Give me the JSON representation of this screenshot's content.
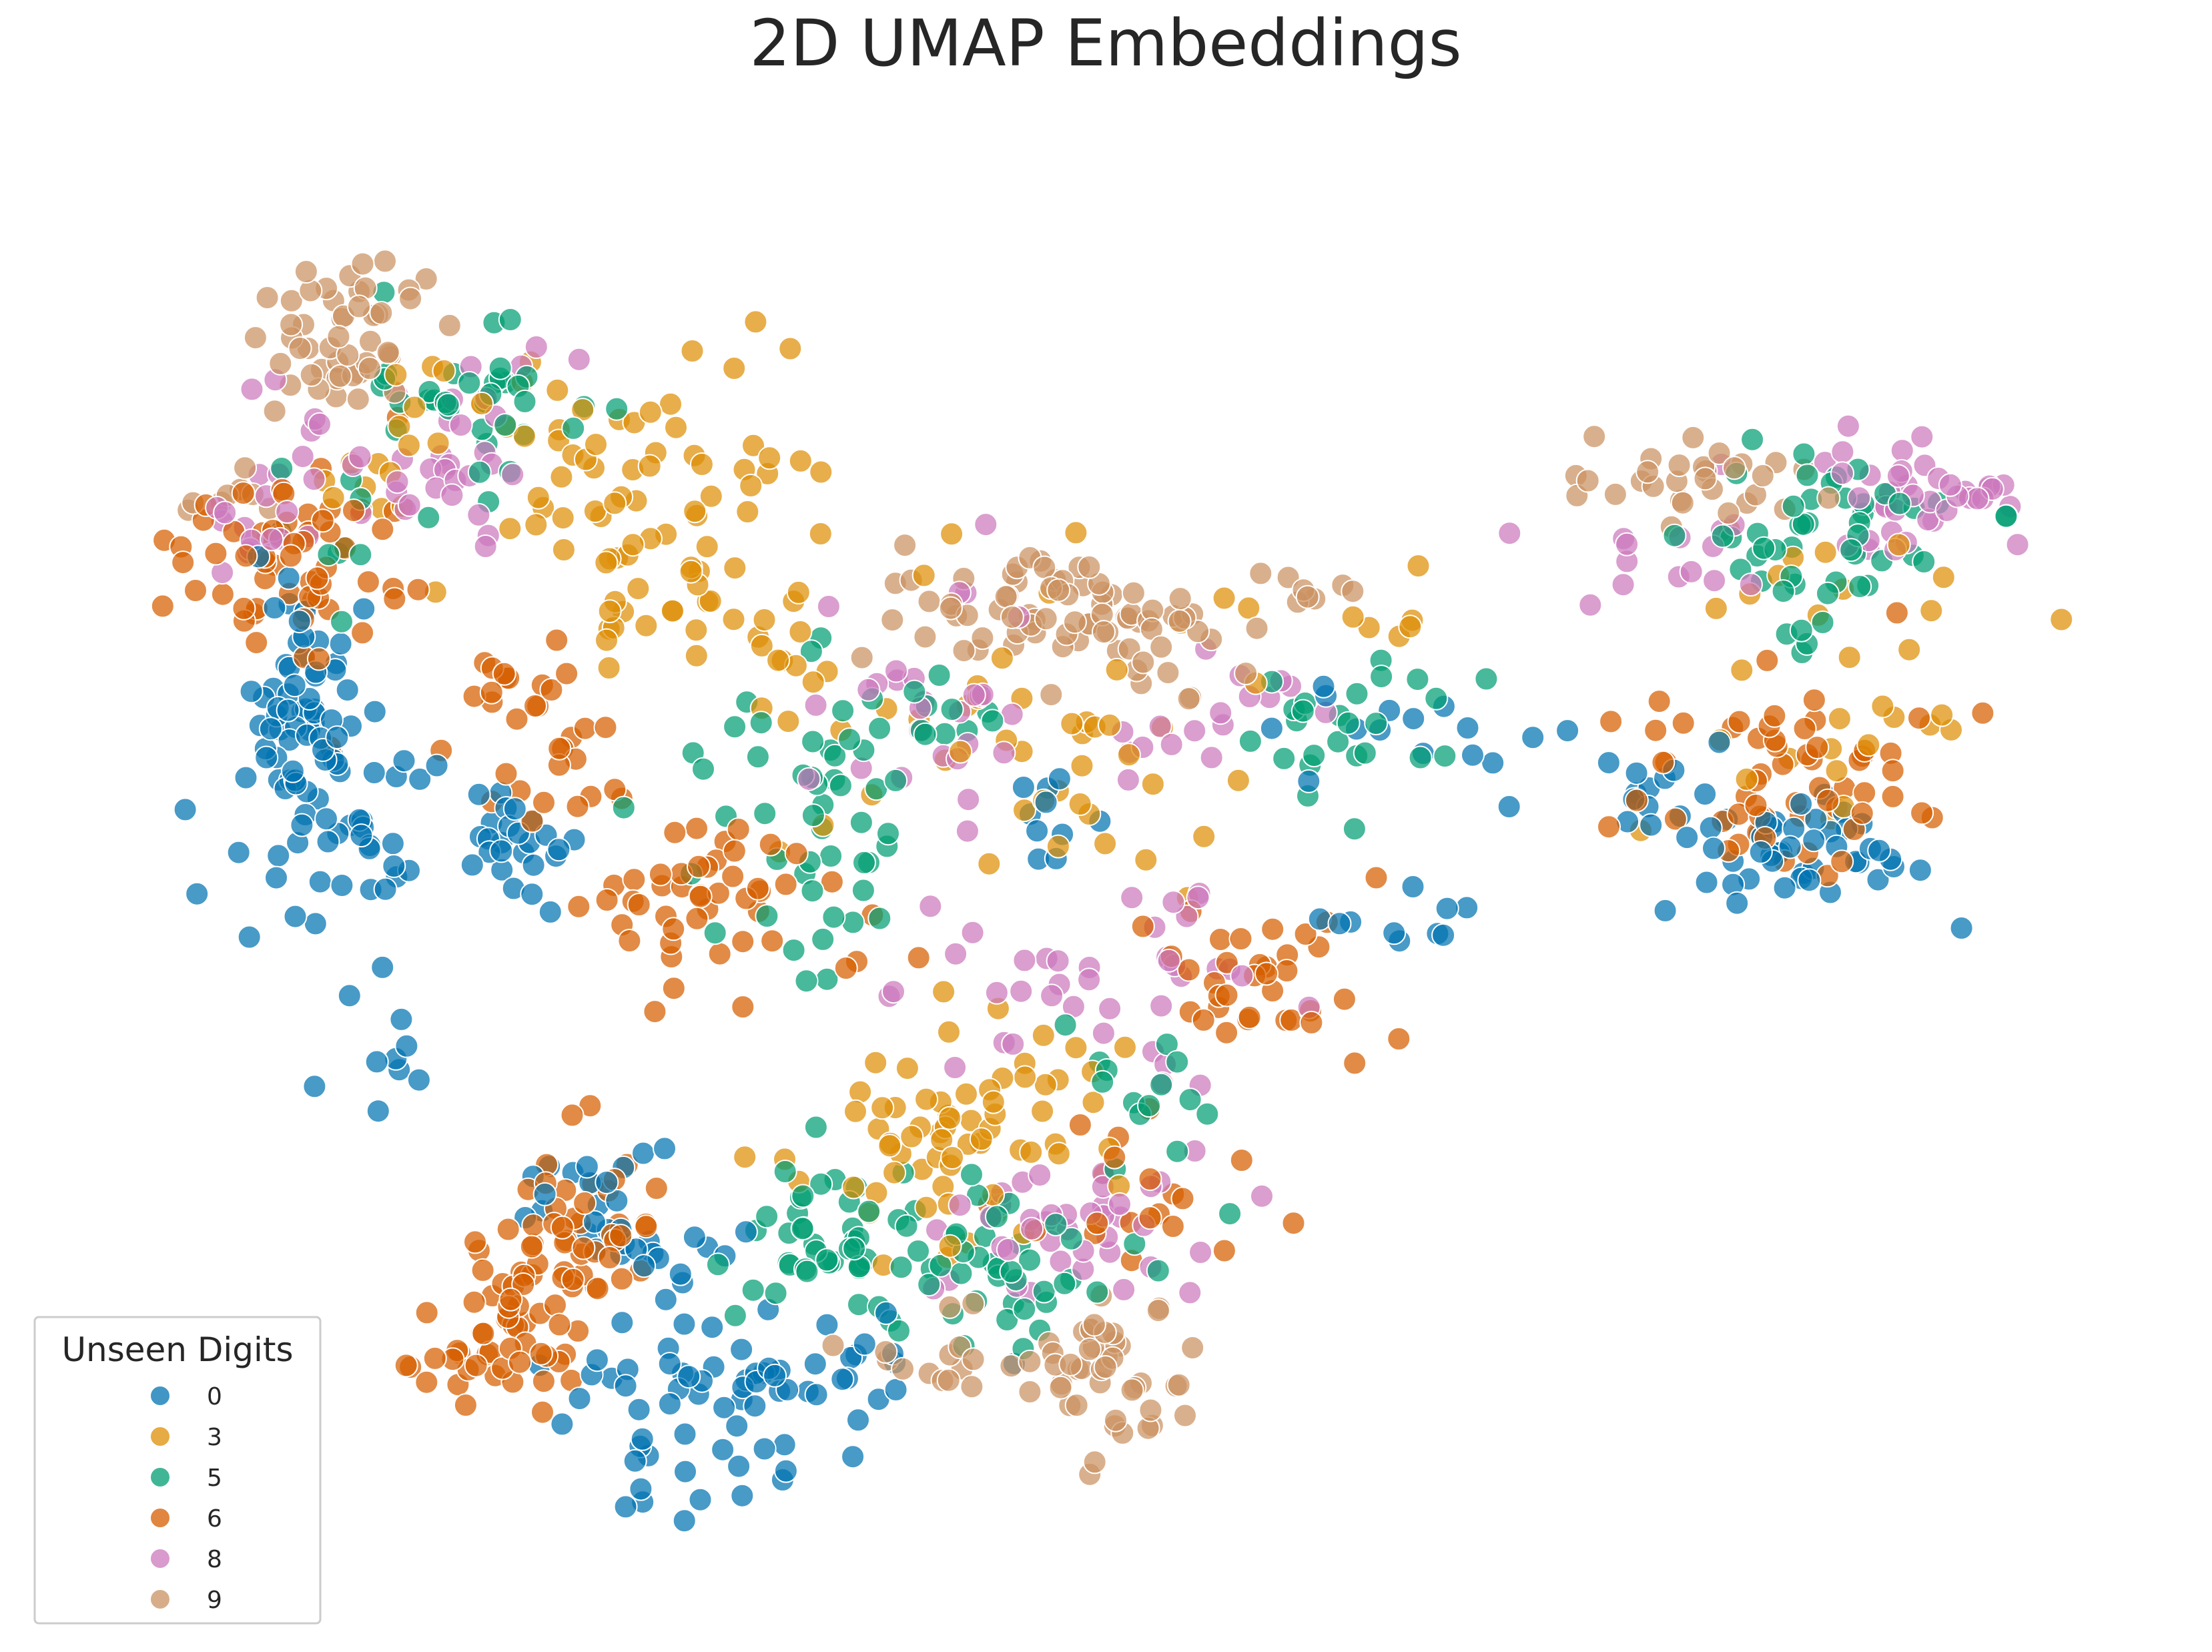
{
  "chart_data": {
    "type": "scatter",
    "title": "2D UMAP Embeddings",
    "xlabel": "",
    "ylabel": "",
    "xlim": [
      0,
      100
    ],
    "ylim": [
      0,
      100
    ],
    "axes_visible": false,
    "grid": false,
    "legend": {
      "title": "Unseen Digits",
      "placement": "bottom-left",
      "entries": [
        "0",
        "3",
        "5",
        "6",
        "8",
        "9"
      ]
    },
    "series": [
      {
        "name": "0",
        "color": "#0173b2",
        "clusters": [
          {
            "center": [
              9.6,
              61.0
            ],
            "spread": [
              1.3,
              4.5
            ],
            "count": 60
          },
          {
            "center": [
              13.0,
              51.0
            ],
            "spread": [
              3.5,
              4.0
            ],
            "count": 45
          },
          {
            "center": [
              21.5,
              50.5
            ],
            "spread": [
              1.5,
              1.8
            ],
            "count": 20
          },
          {
            "center": [
              14.0,
              33.0
            ],
            "spread": [
              1.5,
              2.5
            ],
            "count": 8
          },
          {
            "center": [
              25.0,
              26.0
            ],
            "spread": [
              3.5,
              3.2
            ],
            "count": 30
          },
          {
            "center": [
              29.5,
              12.0
            ],
            "spread": [
              3.5,
              4.0
            ],
            "count": 55
          },
          {
            "center": [
              36.0,
              14.5
            ],
            "spread": [
              3.0,
              2.0
            ],
            "count": 20
          },
          {
            "center": [
              47.0,
              53.0
            ],
            "spread": [
              1.0,
              1.5
            ],
            "count": 10
          },
          {
            "center": [
              64.0,
              59.0
            ],
            "spread": [
              3.5,
              2.0
            ],
            "count": 16
          },
          {
            "center": [
              65.0,
              46.0
            ],
            "spread": [
              2.5,
              1.5
            ],
            "count": 10
          },
          {
            "center": [
              84.0,
              51.0
            ],
            "spread": [
              4.0,
              2.5
            ],
            "count": 50
          },
          {
            "center": [
              77.0,
              55.5
            ],
            "spread": [
              1.5,
              1.5
            ],
            "count": 10
          }
        ]
      },
      {
        "name": "3",
        "color": "#de8f05",
        "clusters": [
          {
            "center": [
              24.5,
              77.5
            ],
            "spread": [
              5.0,
              4.5
            ],
            "count": 70
          },
          {
            "center": [
              30.5,
              67.0
            ],
            "spread": [
              3.0,
              2.5
            ],
            "count": 25
          },
          {
            "center": [
              46.0,
              59.0
            ],
            "spread": [
              6.0,
              6.0
            ],
            "count": 50
          },
          {
            "center": [
              40.5,
              29.0
            ],
            "spread": [
              3.0,
              3.0
            ],
            "count": 40
          },
          {
            "center": [
              46.0,
              33.0
            ],
            "spread": [
              3.0,
              3.0
            ],
            "count": 30
          },
          {
            "center": [
              13.5,
              79.0
            ],
            "spread": [
              1.5,
              4.5
            ],
            "count": 10
          },
          {
            "center": [
              87.0,
              65.0
            ],
            "spread": [
              5.0,
              6.0
            ],
            "count": 30
          },
          {
            "center": [
              65.5,
              67.0
            ],
            "spread": [
              2.0,
              1.5
            ],
            "count": 6
          }
        ]
      },
      {
        "name": "5",
        "color": "#029e73",
        "clusters": [
          {
            "center": [
              18.5,
              81.5
            ],
            "spread": [
              3.0,
              3.0
            ],
            "count": 35
          },
          {
            "center": [
              33.0,
              56.5
            ],
            "spread": [
              3.0,
              4.0
            ],
            "count": 25
          },
          {
            "center": [
              36.5,
              48.5
            ],
            "spread": [
              2.5,
              3.0
            ],
            "count": 20
          },
          {
            "center": [
              36.0,
              22.0
            ],
            "spread": [
              2.5,
              3.0
            ],
            "count": 45
          },
          {
            "center": [
              44.5,
              21.5
            ],
            "spread": [
              2.5,
              2.5
            ],
            "count": 40
          },
          {
            "center": [
              51.0,
              34.0
            ],
            "spread": [
              3.0,
              3.0
            ],
            "count": 15
          },
          {
            "center": [
              85.5,
              73.0
            ],
            "spread": [
              3.5,
              3.5
            ],
            "count": 50
          },
          {
            "center": [
              62.5,
              60.0
            ],
            "spread": [
              3.0,
              2.5
            ],
            "count": 25
          },
          {
            "center": [
              41.0,
              60.0
            ],
            "spread": [
              3.0,
              2.0
            ],
            "count": 15
          },
          {
            "center": [
              12.0,
              73.0
            ],
            "spread": [
              2.0,
              3.0
            ],
            "count": 10
          }
        ]
      },
      {
        "name": "6",
        "color": "#d55e00",
        "clusters": [
          {
            "center": [
              9.5,
              70.5
            ],
            "spread": [
              3.0,
              4.0
            ],
            "count": 60
          },
          {
            "center": [
              20.5,
              59.5
            ],
            "spread": [
              2.5,
              3.5
            ],
            "count": 30
          },
          {
            "center": [
              30.0,
              47.5
            ],
            "spread": [
              4.0,
              3.5
            ],
            "count": 50
          },
          {
            "center": [
              22.5,
              23.5
            ],
            "spread": [
              2.5,
              3.5
            ],
            "count": 50
          },
          {
            "center": [
              19.5,
              17.0
            ],
            "spread": [
              2.5,
              2.5
            ],
            "count": 45
          },
          {
            "center": [
              57.5,
              42.0
            ],
            "spread": [
              3.0,
              3.0
            ],
            "count": 35
          },
          {
            "center": [
              84.0,
              56.0
            ],
            "spread": [
              4.5,
              3.5
            ],
            "count": 60
          },
          {
            "center": [
              51.0,
              27.0
            ],
            "spread": [
              3.0,
              3.0
            ],
            "count": 20
          }
        ]
      },
      {
        "name": "8",
        "color": "#cc78bc",
        "clusters": [
          {
            "center": [
              9.5,
              76.0
            ],
            "spread": [
              1.8,
              3.0
            ],
            "count": 25
          },
          {
            "center": [
              17.5,
              78.5
            ],
            "spread": [
              2.5,
              4.0
            ],
            "count": 30
          },
          {
            "center": [
              40.5,
              60.0
            ],
            "spread": [
              4.5,
              4.5
            ],
            "count": 30
          },
          {
            "center": [
              49.0,
              41.0
            ],
            "spread": [
              5.0,
              3.5
            ],
            "count": 40
          },
          {
            "center": [
              48.5,
              24.0
            ],
            "spread": [
              4.0,
              2.5
            ],
            "count": 40
          },
          {
            "center": [
              90.0,
              75.5
            ],
            "spread": [
              3.0,
              3.0
            ],
            "count": 40
          },
          {
            "center": [
              79.0,
              72.0
            ],
            "spread": [
              2.5,
              2.5
            ],
            "count": 15
          },
          {
            "center": [
              56.0,
              61.0
            ],
            "spread": [
              3.5,
              2.5
            ],
            "count": 15
          }
        ]
      },
      {
        "name": "9",
        "color": "#ca9161",
        "clusters": [
          {
            "center": [
              11.5,
              87.0
            ],
            "spread": [
              1.8,
              2.8
            ],
            "count": 50
          },
          {
            "center": [
              46.5,
              67.5
            ],
            "spread": [
              4.0,
              2.2
            ],
            "count": 60
          },
          {
            "center": [
              53.5,
              66.0
            ],
            "spread": [
              2.5,
              2.0
            ],
            "count": 20
          },
          {
            "center": [
              49.5,
              14.5
            ],
            "spread": [
              2.5,
              3.0
            ],
            "count": 45
          },
          {
            "center": [
              42.0,
              15.5
            ],
            "spread": [
              2.5,
              2.0
            ],
            "count": 15
          },
          {
            "center": [
              79.0,
              76.5
            ],
            "spread": [
              3.5,
              1.5
            ],
            "count": 30
          },
          {
            "center": [
              6.0,
              75.5
            ],
            "spread": [
              1.0,
              1.2
            ],
            "count": 8
          },
          {
            "center": [
              60.5,
              68.5
            ],
            "spread": [
              1.8,
              0.8
            ],
            "count": 8
          }
        ]
      }
    ]
  }
}
